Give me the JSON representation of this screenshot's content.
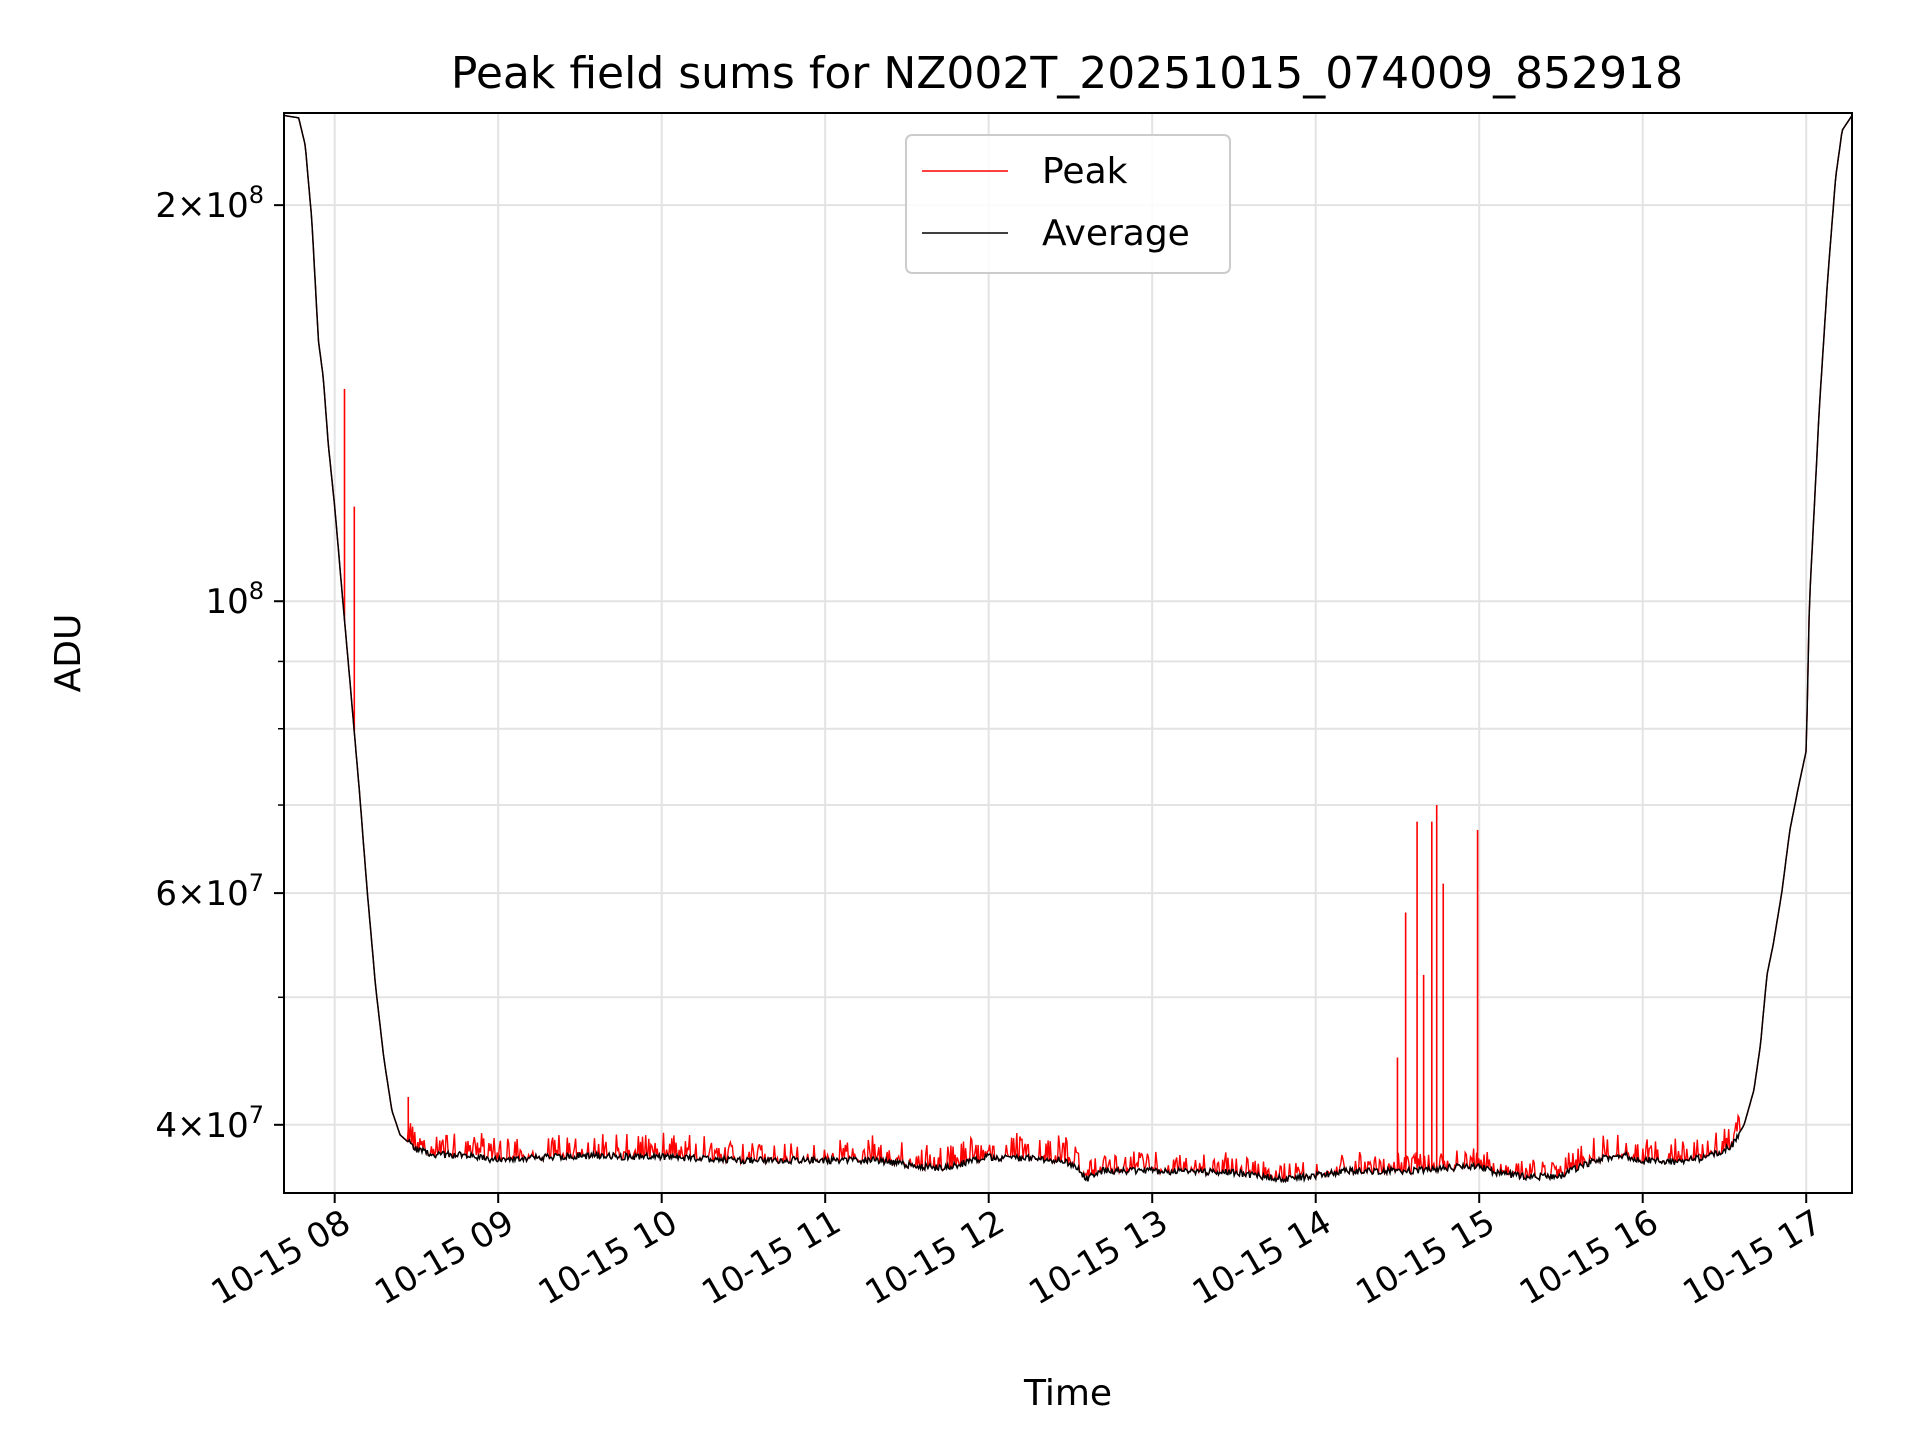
{
  "chart_data": {
    "type": "line",
    "title": "Peak field sums for NZ002T_20251015_074009_852918",
    "xlabel": "Time",
    "ylabel": "ADU",
    "y_scale": "log",
    "x_unit": "hours",
    "xlim": [
      7.69,
      17.28
    ],
    "ylim": [
      35500000,
      235000000
    ],
    "grid": true,
    "legend_position": "upper center",
    "x_ticks": [
      {
        "value": 8,
        "label": "10-15 08"
      },
      {
        "value": 9,
        "label": "10-15 09"
      },
      {
        "value": 10,
        "label": "10-15 10"
      },
      {
        "value": 11,
        "label": "10-15 11"
      },
      {
        "value": 12,
        "label": "10-15 12"
      },
      {
        "value": 13,
        "label": "10-15 13"
      },
      {
        "value": 14,
        "label": "10-15 14"
      },
      {
        "value": 15,
        "label": "10-15 15"
      },
      {
        "value": 16,
        "label": "10-15 16"
      },
      {
        "value": 17,
        "label": "10-15 17"
      }
    ],
    "y_major_ticks": [
      {
        "value": 40000000,
        "mantissa": "4",
        "exp": "7"
      },
      {
        "value": 60000000,
        "mantissa": "6",
        "exp": "7"
      },
      {
        "value": 100000000,
        "mantissa": "",
        "exp": "8"
      },
      {
        "value": 200000000,
        "mantissa": "2",
        "exp": "8"
      }
    ],
    "y_minor_ticks": [
      50000000,
      70000000,
      80000000,
      90000000
    ],
    "series": [
      {
        "name": "Peak",
        "color": "#ff0000"
      },
      {
        "name": "Average",
        "color": "#000000"
      }
    ],
    "average_curve": [
      [
        7.69,
        234000000
      ],
      [
        7.78,
        233000000
      ],
      [
        7.82,
        222000000
      ],
      [
        7.86,
        195000000
      ],
      [
        7.9,
        158000000
      ],
      [
        7.93,
        148000000
      ],
      [
        7.96,
        132000000
      ],
      [
        8.0,
        118000000
      ],
      [
        8.05,
        100000000
      ],
      [
        8.1,
        85000000
      ],
      [
        8.15,
        72000000
      ],
      [
        8.2,
        60000000
      ],
      [
        8.25,
        51000000
      ],
      [
        8.3,
        45000000
      ],
      [
        8.35,
        41000000
      ],
      [
        8.4,
        39300000
      ],
      [
        8.5,
        38300000
      ],
      [
        8.6,
        38000000
      ],
      [
        8.8,
        37900000
      ],
      [
        9.0,
        37600000
      ],
      [
        9.5,
        37900000
      ],
      [
        10.0,
        37800000
      ],
      [
        10.5,
        37600000
      ],
      [
        11.0,
        37600000
      ],
      [
        11.3,
        37600000
      ],
      [
        11.5,
        37300000
      ],
      [
        11.7,
        37100000
      ],
      [
        11.85,
        37400000
      ],
      [
        12.0,
        37800000
      ],
      [
        12.3,
        37700000
      ],
      [
        12.45,
        37600000
      ],
      [
        12.55,
        37000000
      ],
      [
        12.6,
        36400000
      ],
      [
        12.7,
        36900000
      ],
      [
        13.0,
        36900000
      ],
      [
        13.5,
        36800000
      ],
      [
        13.8,
        36400000
      ],
      [
        14.0,
        36600000
      ],
      [
        14.2,
        36900000
      ],
      [
        14.4,
        36900000
      ],
      [
        14.6,
        36900000
      ],
      [
        14.8,
        37100000
      ],
      [
        15.0,
        37200000
      ],
      [
        15.1,
        36800000
      ],
      [
        15.3,
        36500000
      ],
      [
        15.5,
        36600000
      ],
      [
        15.6,
        37100000
      ],
      [
        15.75,
        37700000
      ],
      [
        15.9,
        37900000
      ],
      [
        16.0,
        37600000
      ],
      [
        16.2,
        37500000
      ],
      [
        16.4,
        37800000
      ],
      [
        16.55,
        38600000
      ],
      [
        16.62,
        40000000
      ],
      [
        16.68,
        42500000
      ],
      [
        16.72,
        46000000
      ],
      [
        16.76,
        52000000
      ],
      [
        16.8,
        55000000
      ],
      [
        16.85,
        60000000
      ],
      [
        16.9,
        67000000
      ],
      [
        16.95,
        72000000
      ],
      [
        17.0,
        77000000
      ],
      [
        17.02,
        100000000
      ],
      [
        17.08,
        140000000
      ],
      [
        17.13,
        175000000
      ],
      [
        17.18,
        210000000
      ],
      [
        17.22,
        228000000
      ],
      [
        17.28,
        234000000
      ]
    ],
    "peak_spikes": [
      {
        "x": 8.06,
        "y": 145000000
      },
      {
        "x": 8.12,
        "y": 118000000
      },
      {
        "x": 8.45,
        "y": 42000000
      },
      {
        "x": 14.5,
        "y": 45000000
      },
      {
        "x": 14.55,
        "y": 58000000
      },
      {
        "x": 14.62,
        "y": 68000000
      },
      {
        "x": 14.66,
        "y": 52000000
      },
      {
        "x": 14.71,
        "y": 68000000
      },
      {
        "x": 14.74,
        "y": 70000000
      },
      {
        "x": 14.78,
        "y": 61000000
      },
      {
        "x": 14.99,
        "y": 67000000
      }
    ]
  }
}
